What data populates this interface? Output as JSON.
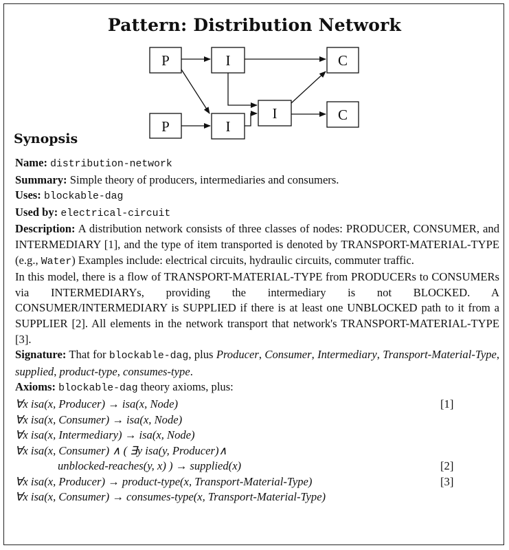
{
  "title": "Pattern: Distribution Network",
  "diagram": {
    "nodes": [
      {
        "label": "P"
      },
      {
        "label": "I"
      },
      {
        "label": "C"
      },
      {
        "label": "P"
      },
      {
        "label": "I"
      },
      {
        "label": "I"
      },
      {
        "label": "C"
      }
    ]
  },
  "synopsis_heading": "Synopsis",
  "name": {
    "label": "Name:",
    "value": "distribution-network"
  },
  "summary": {
    "label": "Summary:",
    "text": "Simple theory of producers, intermediaries and consumers."
  },
  "uses": {
    "label": "Uses:",
    "value": "blockable-dag"
  },
  "used_by": {
    "label": "Used by:",
    "value": "electrical-circuit"
  },
  "description": {
    "label": "Description:",
    "p1_a": "A distribution network consists of three classes of nodes: PRODUCER, CONSUMER, and INTERMEDIARY [1], and the type of item transported is denoted by TRANSPORT-MATERIAL-TYPE (e.g.,",
    "p1_code": "Water",
    "p1_b": ") Examples include: electrical circuits, hydraulic circuits, commuter traffic.",
    "p2": "In this model, there is a flow of TRANSPORT-MATERIAL-TYPE from PRODUCERs to CONSUMERs via INTERMEDIARYs, providing the intermediary is not BLOCKED. A CONSUMER/INTERMEDIARY is SUPPLIED if there is at least one UNBLOCKED path to it from a SUPPLIER [2]. All elements in the network transport that network's TRANSPORT-MATERIAL-TYPE [3]."
  },
  "signature": {
    "label": "Signature:",
    "pre": "That for",
    "code": "blockable-dag",
    "mid": ", plus",
    "items": [
      "Producer",
      "Consumer",
      "Intermediary",
      "Transport-Material-Type",
      "supplied",
      "product-type",
      "consumes-type"
    ]
  },
  "axioms": {
    "label": "Axioms:",
    "code": "blockable-dag",
    "intro": "theory axioms, plus:",
    "lines": [
      {
        "text": "∀x isa(x, Producer) → isa(x, Node)",
        "ref": "[1]"
      },
      {
        "text": "∀x isa(x, Consumer) → isa(x, Node)",
        "ref": ""
      },
      {
        "text": "∀x isa(x, Intermediary) → isa(x, Node)",
        "ref": ""
      },
      {
        "text": "∀x isa(x, Consumer) ∧ ( ∃y isa(y, Producer)∧",
        "ref": ""
      },
      {
        "text": "unblocked-reaches(y, x) ) → supplied(x)",
        "ref": "[2]",
        "indent": true
      },
      {
        "text": "∀x isa(x, Producer) → product-type(x, Transport-Material-Type)",
        "ref": "[3]"
      },
      {
        "text": "∀x isa(x, Consumer) → consumes-type(x, Transport-Material-Type)",
        "ref": ""
      }
    ]
  }
}
